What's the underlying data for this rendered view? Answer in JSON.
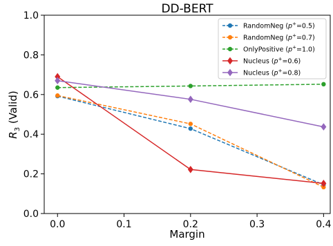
{
  "chart_data": {
    "type": "line",
    "title": "DD-BERT",
    "xlabel": "Margin",
    "ylabel_main": "R",
    "ylabel_sub": "3",
    "ylabel_rest": " (Valid)",
    "xlim": [
      -0.02,
      0.41
    ],
    "ylim": [
      0.0,
      1.0
    ],
    "xticks": [
      0.0,
      0.1,
      0.2,
      0.3,
      0.4
    ],
    "xtick_labels": [
      "0.0",
      "0.1",
      "0.2",
      "0.3",
      "0.4"
    ],
    "yticks": [
      0.0,
      0.2,
      0.4,
      0.6,
      0.8,
      1.0
    ],
    "ytick_labels": [
      "0.0",
      "0.2",
      "0.4",
      "0.6",
      "0.8",
      "1.0"
    ],
    "grid": false,
    "legend_position": "top-right",
    "x": [
      0.0,
      0.2,
      0.4
    ],
    "series": [
      {
        "name": "RandomNeg (p⁺=0.5)",
        "label_main": "RandomNeg (",
        "label_math": "p",
        "label_sup": "+",
        "label_rest": "=0.5)",
        "values": [
          0.592,
          0.428,
          0.145
        ],
        "color": "#1f77b4",
        "dash": true,
        "marker": "circle"
      },
      {
        "name": "RandomNeg (p⁺=0.7)",
        "label_main": "RandomNeg (",
        "label_math": "p",
        "label_sup": "+",
        "label_rest": "=0.7)",
        "values": [
          0.595,
          0.452,
          0.133
        ],
        "color": "#ff7f0e",
        "dash": true,
        "marker": "circle"
      },
      {
        "name": "OnlyPositive (p⁺=1.0)",
        "label_main": "OnlyPositive (",
        "label_math": "p",
        "label_sup": "+",
        "label_rest": "=1.0)",
        "values": [
          0.635,
          0.643,
          0.652
        ],
        "color": "#2ca02c",
        "dash": true,
        "marker": "circle"
      },
      {
        "name": "Nucleus (p⁺=0.6)",
        "label_main": "Nucleus (",
        "label_math": "p",
        "label_sup": "+",
        "label_rest": "=0.6)",
        "values": [
          0.69,
          0.222,
          0.152
        ],
        "color": "#d62728",
        "dash": false,
        "marker": "diamond"
      },
      {
        "name": "Nucleus (p⁺=0.8)",
        "label_main": "Nucleus (",
        "label_math": "p",
        "label_sup": "+",
        "label_rest": "=0.8)",
        "values": [
          0.67,
          0.576,
          0.437
        ],
        "color": "#9467bd",
        "dash": false,
        "marker": "diamond"
      }
    ]
  }
}
